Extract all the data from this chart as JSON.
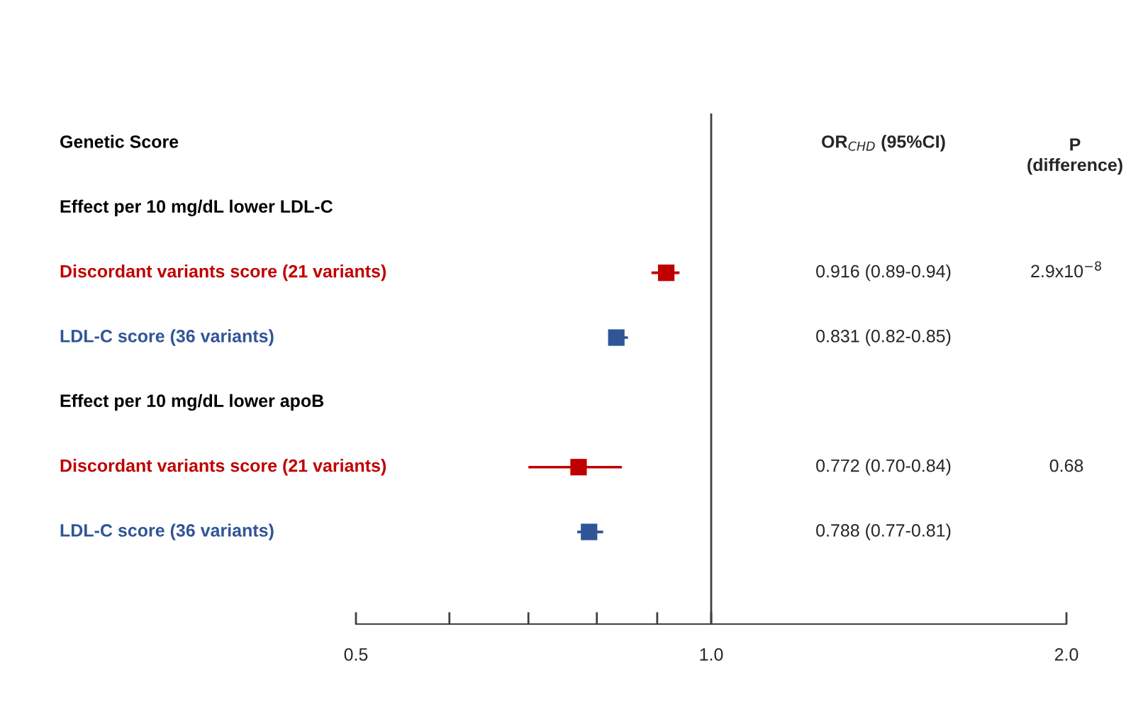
{
  "chart_data": {
    "type": "scatter",
    "orientation": "horizontal",
    "categories": [
      "Genetic Score",
      "Effect per 10 mg/dL lower LDL-C",
      "Discordant variants score (21 variants)",
      "LDL-C score (36 variants)",
      "Effect per 10 mg/dL lower apoB",
      "Discordant variants score (21 variants)",
      "LDL-C score (36 variants)"
    ],
    "values": [
      null,
      null,
      0.916,
      0.831,
      null,
      0.772,
      0.788
    ],
    "errors": [
      null,
      null,
      [
        0.89,
        0.94
      ],
      [
        0.82,
        0.85
      ],
      null,
      [
        0.7,
        0.84
      ],
      [
        0.77,
        0.81
      ]
    ],
    "colors": [
      "#000000",
      "#000000",
      "#c00000",
      "#2f5597",
      "#000000",
      "#c00000",
      "#2f5597"
    ],
    "marker": "square",
    "log": "x",
    "xlim": [
      0.5,
      2.0
    ],
    "xticks": [
      {
        "value": 0.5,
        "label": "0.5"
      },
      {
        "value": 0.6,
        "label": null
      },
      {
        "value": 0.7,
        "label": null
      },
      {
        "value": 0.8,
        "label": null
      },
      {
        "value": 0.9,
        "label": null
      },
      {
        "value": 1,
        "label": "1.0"
      },
      {
        "value": 2,
        "label": "2.0"
      }
    ],
    "tick_labels": "x",
    "grid": false,
    "legend": false,
    "ref_lines": [
      {
        "axis": "x",
        "value": 1,
        "color": "#404040"
      }
    ],
    "annotations": [
      "OR$_{CHD}$ (95%CI)",
      "P\n(difference)",
      "0.916 (0.89-0.94)",
      "0.831 (0.82-0.85)",
      "0.772 (0.70-0.84)",
      "0.788 (0.77-0.81)",
      "2.9x10$^{−8}$",
      "0.68"
    ]
  }
}
